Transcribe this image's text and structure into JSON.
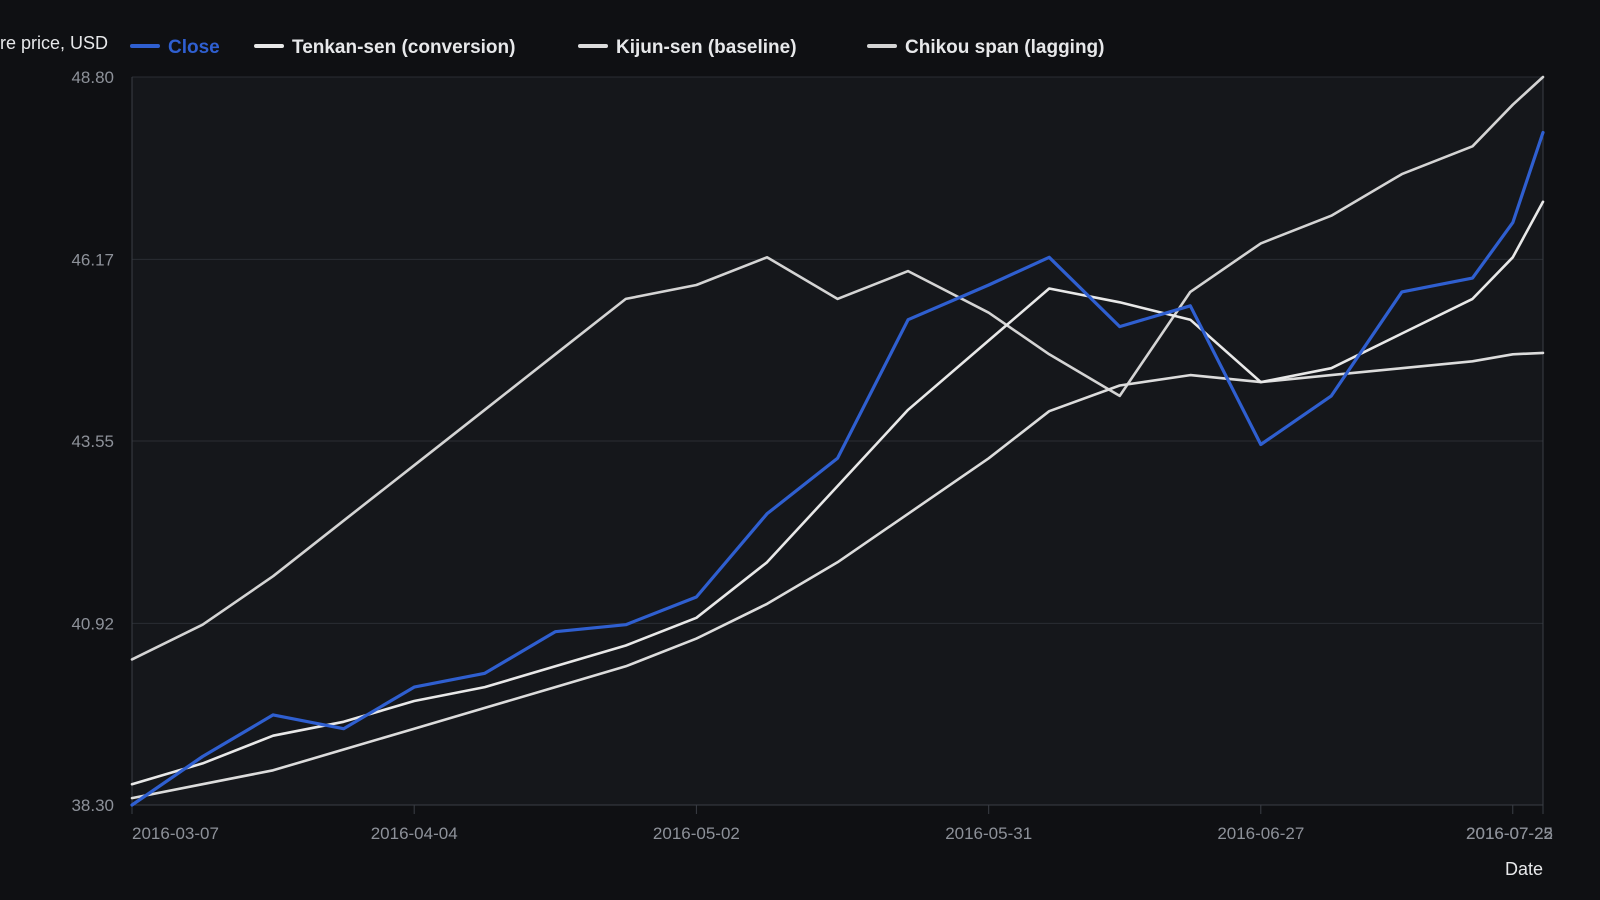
{
  "colors": {
    "background": "#0f1013",
    "plot_background": "#15171b",
    "grid": "#2a2d33",
    "axis": "#3a3e45",
    "close": "#2f5fd0",
    "tenkan": "#e8e8e8",
    "kijun": "#dcdcdc",
    "chikou": "#d4d4d4",
    "tick_text": "#8d9199",
    "title_text": "#e7e8ea"
  },
  "chart_data": {
    "type": "line",
    "xlabel": "Date",
    "ylabel": "re price, USD",
    "ylim": [
      38.3,
      48.8
    ],
    "yticks": [
      "38.30",
      "40.92",
      "43.55",
      "46.17",
      "48.80"
    ],
    "xticks": [
      "2016-03-07",
      "2016-04-04",
      "2016-05-02",
      "2016-05-31",
      "2016-06-27",
      "2016-07-22",
      "2016-07-25"
    ],
    "grid": true,
    "legend_position": "top-left",
    "x": [
      "2016-03-07",
      "2016-03-14",
      "2016-03-21",
      "2016-03-28",
      "2016-04-04",
      "2016-04-11",
      "2016-04-18",
      "2016-04-25",
      "2016-05-02",
      "2016-05-09",
      "2016-05-16",
      "2016-05-23",
      "2016-05-31",
      "2016-06-06",
      "2016-06-13",
      "2016-06-20",
      "2016-06-27",
      "2016-07-04",
      "2016-07-11",
      "2016-07-18",
      "2016-07-22",
      "2016-07-25"
    ],
    "series": [
      {
        "name": "Close",
        "color_key": "close",
        "values": [
          38.3,
          39.0,
          39.6,
          39.4,
          40.0,
          40.2,
          40.8,
          40.9,
          41.3,
          42.5,
          43.3,
          45.3,
          45.8,
          46.2,
          45.2,
          45.5,
          43.5,
          44.2,
          45.7,
          45.9,
          46.7,
          48.0
        ]
      },
      {
        "name": "Tenkan-sen (conversion)",
        "color_key": "tenkan",
        "values": [
          38.6,
          38.9,
          39.3,
          39.5,
          39.8,
          40.0,
          40.3,
          40.6,
          41.0,
          41.8,
          42.9,
          44.0,
          45.0,
          45.75,
          45.55,
          45.3,
          44.4,
          44.6,
          45.1,
          45.6,
          46.2,
          47.0
        ]
      },
      {
        "name": "Kijun-sen (baseline)",
        "color_key": "kijun",
        "values": [
          38.4,
          38.6,
          38.8,
          39.1,
          39.4,
          39.7,
          40.0,
          40.3,
          40.7,
          41.2,
          41.8,
          42.5,
          43.3,
          43.98,
          44.35,
          44.5,
          44.4,
          44.5,
          44.6,
          44.7,
          44.8,
          44.82
        ]
      },
      {
        "name": "Chikou span (lagging)",
        "color_key": "chikou",
        "values": [
          40.4,
          40.9,
          41.6,
          42.4,
          43.2,
          44.0,
          44.8,
          45.6,
          45.8,
          46.2,
          45.6,
          46.0,
          45.4,
          44.8,
          44.2,
          45.7,
          46.4,
          46.8,
          47.4,
          47.8,
          48.4,
          48.8
        ]
      }
    ]
  }
}
